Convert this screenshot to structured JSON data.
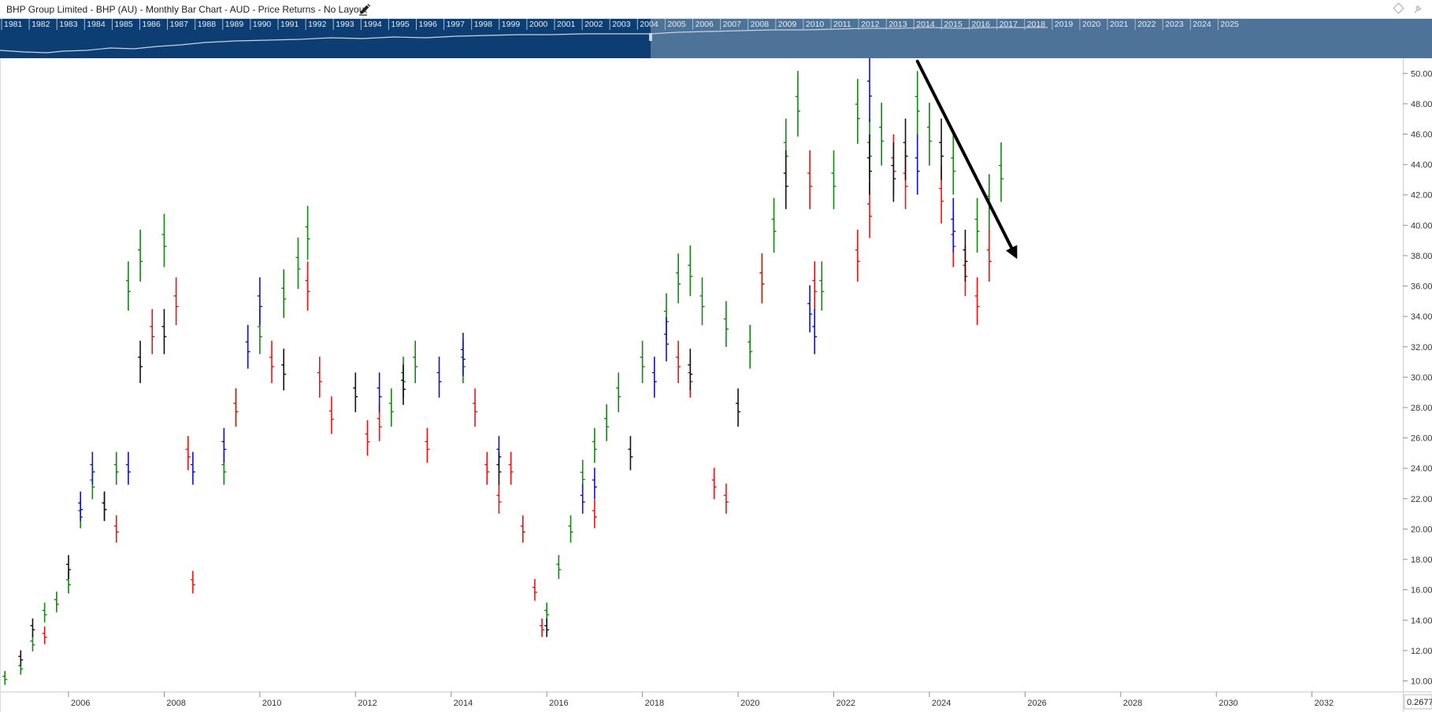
{
  "window": {
    "title": "BHP Group Limited - BHP (AU) - Monthly Bar Chart - AUD - Price Returns - No Layout"
  },
  "icons": {
    "edit": "pencil-icon",
    "layout": "diamond-icon",
    "pin": "pin-icon"
  },
  "navigator": {
    "years": [
      "1981",
      "1982",
      "1983",
      "1984",
      "1985",
      "1986",
      "1987",
      "1988",
      "1989",
      "1990",
      "1991",
      "1992",
      "1993",
      "1994",
      "1995",
      "1996",
      "1997",
      "1998",
      "1999",
      "2000",
      "2001",
      "2002",
      "2003",
      "2004",
      "2005",
      "2006",
      "2007",
      "2008",
      "2009",
      "2010",
      "2011",
      "2012",
      "2013",
      "2014",
      "2015",
      "2016",
      "2017",
      "2018",
      "2019",
      "2020",
      "2021",
      "2022",
      "2023",
      "2024",
      "2025"
    ],
    "colors": {
      "dark": "#0d3e73",
      "selected": "#4e7399"
    }
  },
  "corner_value": "0.2677",
  "colors": {
    "up": "#118811",
    "down": "#ee1111",
    "blue": "#1111cc",
    "black": "#111111"
  },
  "chart_data": {
    "type": "bar",
    "subtype": "monthly-ohlc-bars",
    "title": "BHP Group Limited - BHP (AU) - Monthly Bar Chart - AUD - Price Returns - No Layout",
    "currency": "AUD",
    "xlabel": "",
    "ylabel": "",
    "xlim": [
      2004.6,
      2033.9
    ],
    "ylim": [
      9.3,
      51.0
    ],
    "x_ticks": [
      "2006",
      "2008",
      "2010",
      "2012",
      "2014",
      "2016",
      "2018",
      "2020",
      "2022",
      "2024",
      "2026",
      "2028",
      "2030",
      "2032"
    ],
    "y_ticks": [
      "10.00",
      "12.00",
      "14.00",
      "16.00",
      "18.00",
      "20.00",
      "22.00",
      "24.00",
      "26.00",
      "28.00",
      "30.00",
      "32.00",
      "34.00",
      "36.00",
      "38.00",
      "40.00",
      "42.00",
      "44.00",
      "46.00",
      "48.00",
      "50.00"
    ],
    "grid": false,
    "series": [
      {
        "color": "up",
        "points": [
          [
            2004.67,
            10.2
          ],
          [
            2005.0,
            10.9
          ],
          [
            2005.25,
            12.5
          ],
          [
            2005.5,
            14.5
          ],
          [
            2005.75,
            15.2
          ],
          [
            2006.0,
            16.5
          ],
          [
            2006.25,
            21.0
          ],
          [
            2006.5,
            23.0
          ],
          [
            2007.0,
            24.0
          ],
          [
            2007.25,
            36.0
          ],
          [
            2007.5,
            38.0
          ],
          [
            2008.0,
            39.0
          ],
          [
            2009.25,
            24.0
          ],
          [
            2009.5,
            28.0
          ],
          [
            2010.0,
            33.0
          ],
          [
            2010.5,
            35.5
          ],
          [
            2010.8,
            37.5
          ],
          [
            2011.0,
            39.5
          ],
          [
            2012.75,
            28.0
          ],
          [
            2013.0,
            30.0
          ],
          [
            2013.25,
            31.0
          ],
          [
            2014.25,
            31.0
          ],
          [
            2016.0,
            14.5
          ],
          [
            2016.25,
            17.5
          ],
          [
            2016.5,
            20.0
          ],
          [
            2016.75,
            23.5
          ],
          [
            2017.0,
            25.5
          ],
          [
            2017.25,
            27.0
          ],
          [
            2017.5,
            29.0
          ],
          [
            2018.0,
            31.0
          ],
          [
            2018.5,
            34.0
          ],
          [
            2018.75,
            36.5
          ],
          [
            2019.0,
            37.0
          ],
          [
            2019.25,
            35.0
          ],
          [
            2019.75,
            33.5
          ],
          [
            2020.25,
            32.0
          ],
          [
            2020.5,
            36.5
          ],
          [
            2020.75,
            40.0
          ],
          [
            2021.0,
            45.0
          ],
          [
            2021.25,
            48.0
          ],
          [
            2021.75,
            36.0
          ],
          [
            2022.0,
            43.0
          ],
          [
            2022.5,
            47.5
          ],
          [
            2022.75,
            45.0
          ],
          [
            2023.0,
            46.0
          ],
          [
            2023.75,
            48.0
          ],
          [
            2024.0,
            46.0
          ],
          [
            2024.5,
            44.0
          ],
          [
            2025.0,
            40.0
          ],
          [
            2025.25,
            41.5
          ],
          [
            2025.5,
            43.5
          ]
        ]
      },
      {
        "color": "down",
        "points": [
          [
            2005.5,
            13.0
          ],
          [
            2006.75,
            21.5
          ],
          [
            2007.0,
            20.0
          ],
          [
            2007.75,
            33.0
          ],
          [
            2008.25,
            35.0
          ],
          [
            2008.5,
            25.0
          ],
          [
            2008.6,
            16.5
          ],
          [
            2009.5,
            28.0
          ],
          [
            2010.25,
            31.0
          ],
          [
            2011.0,
            36.0
          ],
          [
            2011.25,
            30.0
          ],
          [
            2011.5,
            27.5
          ],
          [
            2012.25,
            26.0
          ],
          [
            2012.5,
            27.0
          ],
          [
            2013.5,
            25.5
          ],
          [
            2014.5,
            28.0
          ],
          [
            2014.75,
            24.0
          ],
          [
            2015.0,
            22.0
          ],
          [
            2015.25,
            24.0
          ],
          [
            2015.5,
            20.0
          ],
          [
            2015.75,
            16.0
          ],
          [
            2015.9,
            13.5
          ],
          [
            2017.0,
            21.0
          ],
          [
            2018.75,
            31.0
          ],
          [
            2019.0,
            30.0
          ],
          [
            2019.5,
            23.0
          ],
          [
            2019.75,
            22.0
          ],
          [
            2020.5,
            36.5
          ],
          [
            2021.5,
            43.0
          ],
          [
            2021.6,
            36.0
          ],
          [
            2022.5,
            38.0
          ],
          [
            2022.75,
            41.0
          ],
          [
            2023.25,
            44.0
          ],
          [
            2023.5,
            43.0
          ],
          [
            2024.25,
            42.0
          ],
          [
            2024.5,
            39.0
          ],
          [
            2024.75,
            37.0
          ],
          [
            2025.0,
            35.0
          ],
          [
            2025.25,
            38.0
          ]
        ]
      },
      {
        "color": "blue",
        "points": [
          [
            2006.25,
            21.5
          ],
          [
            2006.5,
            24.0
          ],
          [
            2007.25,
            24.0
          ],
          [
            2008.6,
            24.0
          ],
          [
            2009.25,
            25.5
          ],
          [
            2009.75,
            32.0
          ],
          [
            2010.0,
            35.0
          ],
          [
            2012.5,
            29.0
          ],
          [
            2013.75,
            30.0
          ],
          [
            2014.25,
            31.5
          ],
          [
            2015.0,
            25.0
          ],
          [
            2016.75,
            22.0
          ],
          [
            2017.0,
            23.0
          ],
          [
            2018.25,
            30.0
          ],
          [
            2018.5,
            32.5
          ],
          [
            2021.5,
            34.5
          ],
          [
            2021.6,
            33.0
          ],
          [
            2022.75,
            49.0
          ],
          [
            2023.75,
            44.0
          ],
          [
            2024.5,
            40.0
          ]
        ]
      },
      {
        "color": "black",
        "points": [
          [
            2005.0,
            11.5
          ],
          [
            2005.25,
            13.5
          ],
          [
            2006.0,
            17.5
          ],
          [
            2006.75,
            21.5
          ],
          [
            2007.5,
            31.0
          ],
          [
            2008.0,
            33.0
          ],
          [
            2010.5,
            30.5
          ],
          [
            2012.0,
            29.0
          ],
          [
            2013.0,
            29.5
          ],
          [
            2015.0,
            24.0
          ],
          [
            2016.0,
            13.5
          ],
          [
            2017.75,
            25.0
          ],
          [
            2019.0,
            30.5
          ],
          [
            2020.0,
            28.0
          ],
          [
            2021.0,
            43.0
          ],
          [
            2022.75,
            44.0
          ],
          [
            2023.25,
            43.5
          ],
          [
            2023.5,
            45.0
          ],
          [
            2024.25,
            45.0
          ],
          [
            2024.75,
            38.0
          ]
        ]
      }
    ],
    "annotations": [
      {
        "type": "arrow",
        "from": [
          2023.75,
          50.8
        ],
        "to": [
          2025.8,
          38.0
        ],
        "color": "#000000"
      }
    ]
  }
}
